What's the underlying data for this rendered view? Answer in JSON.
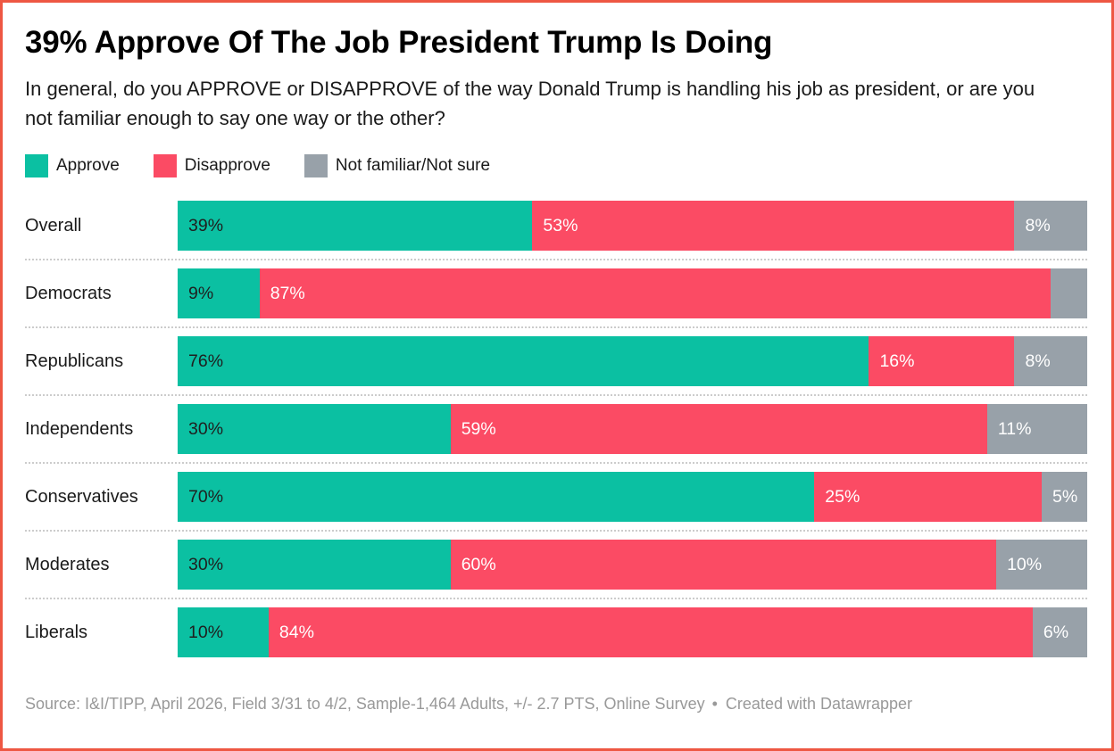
{
  "header": {
    "title": "39% Approve Of The Job President Trump Is Doing",
    "subtitle": "In general, do you APPROVE or DISAPPROVE of the way Donald Trump is handling his job as president, or are you not familiar enough to say one way or the other?"
  },
  "colors": {
    "approve": "#0bc0a2",
    "disapprove": "#fb4b64",
    "not_sure": "#98a1a9",
    "frame_border": "#ee5743",
    "label_on_approve": "#1f1f1f",
    "label_on_disapprove": "#ffffff",
    "label_on_not_sure": "#ffffff",
    "separator": "#cccccc",
    "source_text": "#999999"
  },
  "footer": {
    "source": "Source: I&I/TIPP, April 2026, Field 3/31 to 4/2, Sample-1,464 Adults, +/- 2.7 PTS, Online Survey",
    "separator": "•",
    "credit": "Created with Datawrapper"
  },
  "chart_data": {
    "type": "bar",
    "variant": "stacked-horizontal",
    "unit": "%",
    "xlim": [
      0,
      100
    ],
    "legend_position": "top",
    "grid": false,
    "min_label_pct": 5,
    "title": "39% Approve Of The Job President Trump Is Doing",
    "categories": [
      "Overall",
      "Democrats",
      "Republicans",
      "Independents",
      "Conservatives",
      "Moderates",
      "Liberals"
    ],
    "series": [
      {
        "name": "Approve",
        "color": "#0bc0a2",
        "label_color": "#1f1f1f",
        "values": [
          39,
          9,
          76,
          30,
          70,
          30,
          10
        ]
      },
      {
        "name": "Disapprove",
        "color": "#fb4b64",
        "label_color": "#ffffff",
        "values": [
          53,
          87,
          16,
          59,
          25,
          60,
          84
        ]
      },
      {
        "name": "Not familiar/Not sure",
        "color": "#98a1a9",
        "label_color": "#ffffff",
        "values": [
          8,
          4,
          8,
          11,
          5,
          10,
          6
        ]
      }
    ]
  }
}
